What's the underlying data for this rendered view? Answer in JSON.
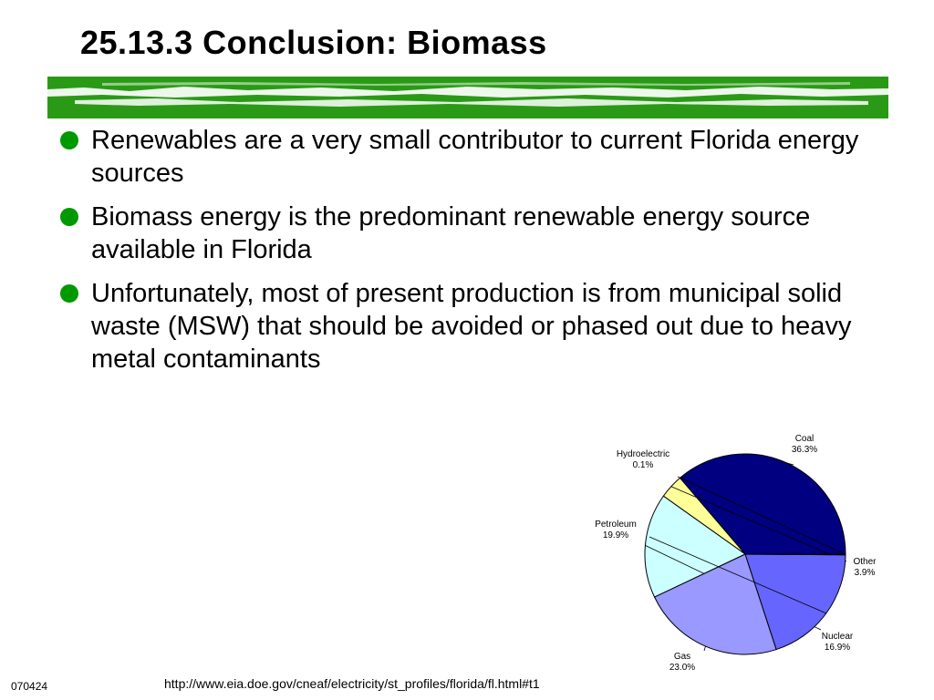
{
  "slide": {
    "title": "25.13.3 Conclusion: Biomass",
    "bullets": [
      "Renewables are a very small contributor to current Florida energy sources",
      "Biomass energy is the predominant renewable energy source available in Florida",
      "Unfortunately, most of present production is from municipal solid waste (MSW) that should be avoided or phased out due to heavy metal contaminants"
    ],
    "footer_id": "070424",
    "source_url": "http://www.eia.doe.gov/cneaf/electricity/st_profiles/florida/fl.html#t1",
    "colors": {
      "bullet": "#009900",
      "brush": "#2a9a16"
    }
  },
  "chart_data": {
    "type": "pie",
    "title": "",
    "slices": [
      {
        "label": "Coal",
        "value_label": "36.3%",
        "value": 36.3,
        "color": "#000080"
      },
      {
        "label": "Other",
        "value_label": "3.9%",
        "value": 3.9,
        "color": "#ffff99"
      },
      {
        "label": "Nuclear",
        "value_label": "16.9%",
        "value": 16.9,
        "color": "#ccffff"
      },
      {
        "label": "Gas",
        "value_label": "23.0%",
        "value": 23.0,
        "color": "#9999ff"
      },
      {
        "label": "Petroleum",
        "value_label": "19.9%",
        "value": 19.9,
        "color": "#6666ff"
      },
      {
        "label": "Hydroelectric",
        "value_label": "0.1%",
        "value": 0.1,
        "color": "#3333cc"
      }
    ]
  }
}
